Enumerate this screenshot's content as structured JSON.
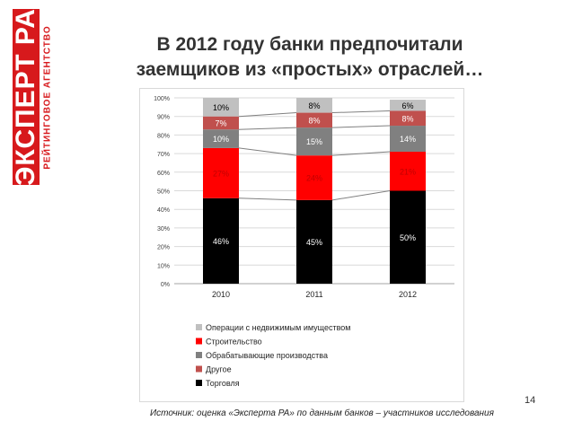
{
  "logo": {
    "main": "ЭКСПЕРТ РА",
    "sub": "РЕЙТИНГОВОЕ АГЕНТСТВО",
    "color": "#d7191c"
  },
  "title": {
    "line1": "В 2012 году банки предпочитали",
    "line2": "заемщиков из «простых» отраслей…"
  },
  "page_number": "14",
  "source": "Источник: оценка «Эксперта РА» по данным банков – участников исследования",
  "chart_data": {
    "type": "bar",
    "stacked": true,
    "categories": [
      "2010",
      "2011",
      "2012"
    ],
    "yticks": [
      "0%",
      "10%",
      "20%",
      "30%",
      "40%",
      "50%",
      "60%",
      "70%",
      "80%",
      "90%",
      "100%"
    ],
    "ylim": [
      0,
      100
    ],
    "grid": true,
    "legend_position": "bottom",
    "series": [
      {
        "name": "Торговля",
        "color": "#000000",
        "label_color": "#ffffff",
        "values": [
          46,
          45,
          50
        ],
        "labels": [
          "46%",
          "45%",
          "50%"
        ]
      },
      {
        "name": "Строительство",
        "color": "#ff0000",
        "label_color": "#c00000",
        "values": [
          27,
          24,
          21
        ],
        "labels": [
          "27%",
          "24%",
          "21%"
        ]
      },
      {
        "name": "Обрабатывающие производства",
        "color": "#808080",
        "label_color": "#ffffff",
        "values": [
          10,
          15,
          14
        ],
        "labels": [
          "10%",
          "15%",
          "14%"
        ]
      },
      {
        "name": "Другое",
        "color": "#c0504d",
        "label_color": "#ffffff",
        "values": [
          7,
          8,
          8
        ],
        "labels": [
          "7%",
          "8%",
          "8%"
        ]
      },
      {
        "name": "Операции с недвижимым имуществом",
        "color": "#c0c0c0",
        "label_color": "#000000",
        "values": [
          10,
          8,
          6
        ],
        "labels": [
          "10%",
          "8%",
          "6%"
        ]
      }
    ],
    "legend_order": [
      "Операции с недвижимым имуществом",
      "Строительство",
      "Обрабатывающие производства",
      "Другое",
      "Торговля"
    ]
  }
}
